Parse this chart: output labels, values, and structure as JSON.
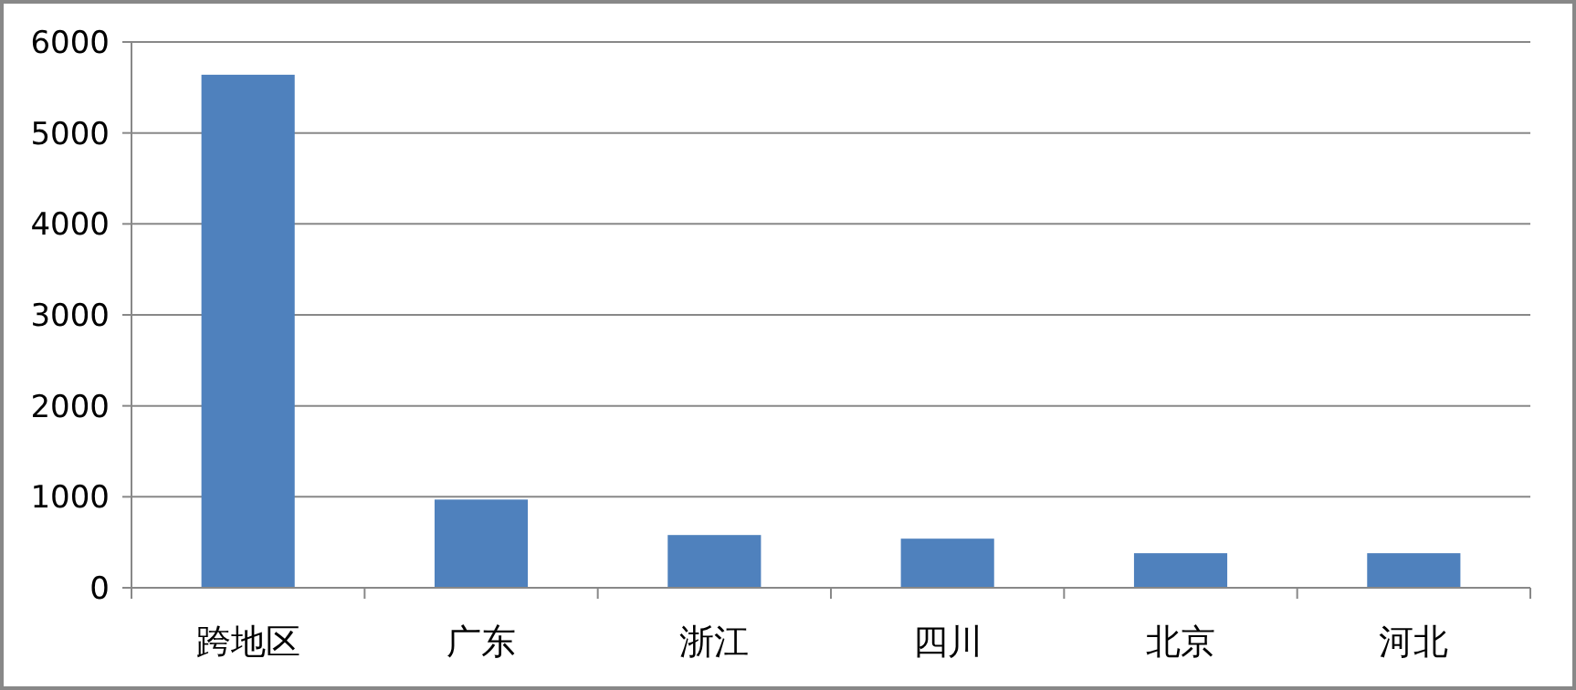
{
  "chart_data": {
    "type": "bar",
    "categories": [
      "跨地区",
      "广东",
      "浙江",
      "四川",
      "北京",
      "河北"
    ],
    "values": [
      5640,
      970,
      580,
      540,
      380,
      380
    ],
    "color": "#4f81bd",
    "ylim": [
      0,
      6000
    ],
    "yticks": [
      0,
      1000,
      2000,
      3000,
      4000,
      5000,
      6000
    ],
    "grid": "y"
  }
}
